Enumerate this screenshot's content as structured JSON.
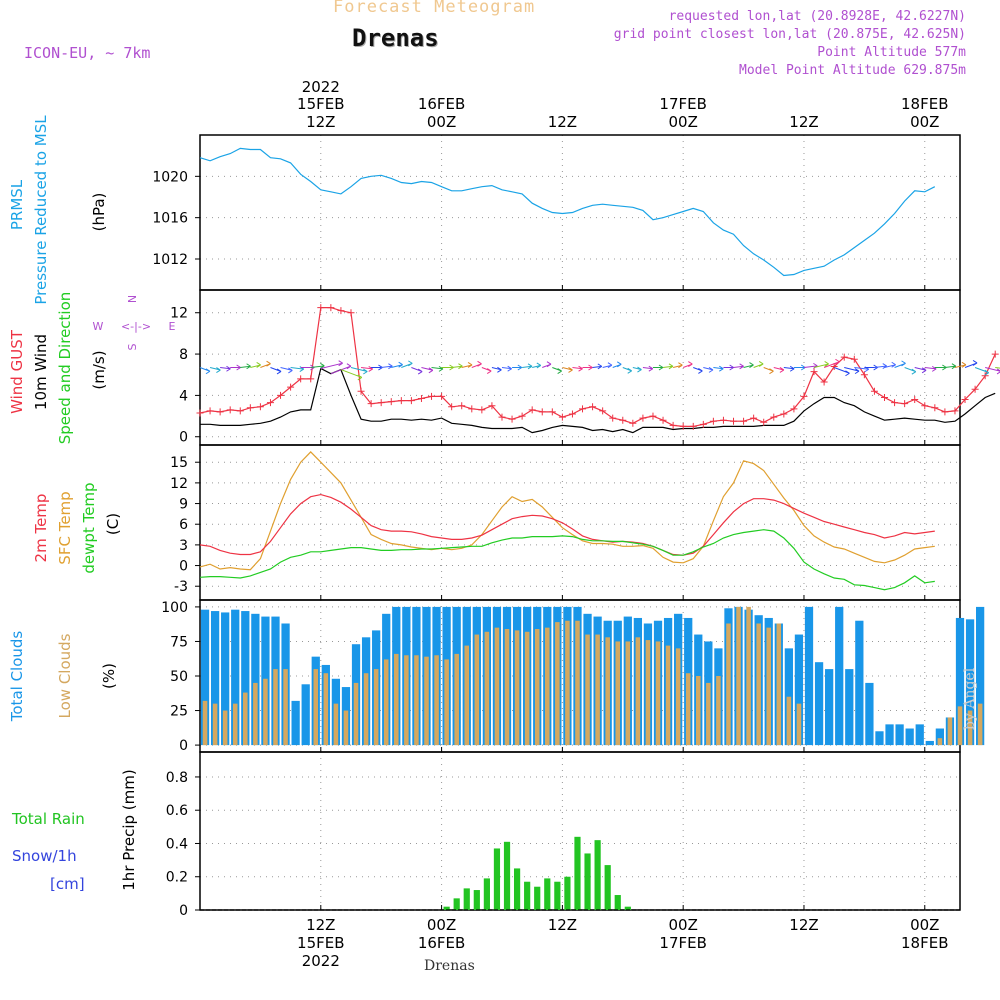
{
  "header": {
    "product": "Forecast Meteogram",
    "location": "Drenas",
    "model": "ICON-EU, ~ 7km",
    "requested": "requested lon,lat (20.8928E, 42.6227N)",
    "gridpoint": "grid point closest lon,lat (20.875E, 42.625N)",
    "point_alt": "Point Altitude 577m",
    "model_alt": "Model Point Altitude 629.875m",
    "footer_location": "Drenas",
    "credit": "by Angel"
  },
  "time_axis": {
    "top_ticks": [
      {
        "l1": "2022",
        "l2": "15FEB",
        "l3": "12Z",
        "hour": 12
      },
      {
        "l1": "",
        "l2": "16FEB",
        "l3": "00Z",
        "hour": 24
      },
      {
        "l1": "",
        "l2": "",
        "l3": "12Z",
        "hour": 36
      },
      {
        "l1": "",
        "l2": "17FEB",
        "l3": "00Z",
        "hour": 48
      },
      {
        "l1": "",
        "l2": "",
        "l3": "12Z",
        "hour": 60
      },
      {
        "l1": "",
        "l2": "18FEB",
        "l3": "00Z",
        "hour": 72
      }
    ],
    "bottom_ticks": [
      {
        "l1": "12Z",
        "l2": "15FEB",
        "l3": "2022",
        "hour": 12
      },
      {
        "l1": "00Z",
        "l2": "16FEB",
        "l3": "",
        "hour": 24
      },
      {
        "l1": "12Z",
        "l2": "",
        "l3": "",
        "hour": 36
      },
      {
        "l1": "00Z",
        "l2": "17FEB",
        "l3": "",
        "hour": 48
      },
      {
        "l1": "12Z",
        "l2": "",
        "l3": "",
        "hour": 60
      },
      {
        "l1": "00Z",
        "l2": "18FEB",
        "l3": "",
        "hour": 72
      }
    ]
  },
  "panels": {
    "pressure": {
      "label1": "PRMSL",
      "label2": "Pressure Reduced to MSL",
      "unit": "(hPa)"
    },
    "wind": {
      "label1": "Wind GUST",
      "label2": "10m Wind",
      "label3": "Speed and Direction",
      "unit": "(m/s)",
      "compass_n": "N",
      "compass_s": "S",
      "compass_w": "W",
      "compass_e": "E",
      "compass_mid": "<-|->"
    },
    "temp": {
      "label1": "2m Temp",
      "label2": "SFC Temp",
      "label3": "dewpt Temp",
      "unit": "(C)"
    },
    "cloud": {
      "label1": "Total Clouds",
      "label2": "Low Clouds",
      "unit": "(%)"
    },
    "precip": {
      "label1": "Total  Rain",
      "label2": "Snow/1h",
      "label3": "[cm]",
      "unit": "1hr Precip (mm)"
    }
  },
  "colors": {
    "pressure": "#1aa3e6",
    "gust": "#ee3344",
    "wind": "#000000",
    "t2m": "#ee3344",
    "sfc": "#e0a030",
    "dewpt": "#22cc22",
    "total_cloud": "#1996e8",
    "low_cloud": "#d4a860",
    "rain": "#22c422",
    "grid": "#999999",
    "title": "#f0c890",
    "info": "#b050d0",
    "snow": "#3344dd"
  },
  "chart_data": [
    {
      "type": "line",
      "title": "PRMSL",
      "xlabel": "",
      "ylabel": "(hPa)",
      "ylim": [
        1009,
        1024
      ],
      "yticks": [
        1012,
        1016,
        1020
      ],
      "xlim": [
        0,
        75.5
      ],
      "series": [
        {
          "name": "PRMSL",
          "x_step_hours": 1,
          "values": [
            1021.8,
            1021.5,
            1021.9,
            1022.2,
            1022.7,
            1022.6,
            1022.6,
            1021.8,
            1021.7,
            1021.3,
            1020.2,
            1019.5,
            1018.7,
            1018.5,
            1018.3,
            1019.0,
            1019.8,
            1020.0,
            1020.1,
            1019.8,
            1019.4,
            1019.3,
            1019.5,
            1019.4,
            1019.0,
            1018.6,
            1018.6,
            1018.8,
            1019.0,
            1019.1,
            1018.7,
            1018.5,
            1018.3,
            1017.4,
            1016.9,
            1016.5,
            1016.4,
            1016.5,
            1016.9,
            1017.2,
            1017.3,
            1017.2,
            1017.1,
            1017.0,
            1016.7,
            1015.8,
            1016.0,
            1016.3,
            1016.6,
            1016.9,
            1016.6,
            1015.5,
            1014.8,
            1014.4,
            1013.3,
            1012.5,
            1011.9,
            1011.2,
            1010.4,
            1010.5,
            1010.9,
            1011.1,
            1011.3,
            1011.9,
            1012.4,
            1013.1,
            1013.8,
            1014.5,
            1015.4,
            1016.4,
            1017.6,
            1018.6,
            1018.5,
            1019.0
          ]
        }
      ]
    },
    {
      "type": "line",
      "title": "Wind GUST / 10m Wind Speed and Direction",
      "xlabel": "",
      "ylabel": "(m/s)",
      "ylim": [
        -0.8,
        14.2
      ],
      "yticks": [
        0,
        4,
        8,
        12
      ],
      "xlim": [
        0,
        75.5
      ],
      "series": [
        {
          "name": "Wind GUST",
          "x_step_hours": 1,
          "values": [
            2.3,
            2.5,
            2.4,
            2.6,
            2.5,
            2.8,
            2.9,
            3.3,
            4.0,
            4.8,
            5.6,
            5.6,
            12.5,
            12.5,
            12.2,
            12.0,
            4.4,
            3.2,
            3.3,
            3.4,
            3.5,
            3.5,
            3.7,
            3.9,
            3.9,
            2.9,
            3.0,
            2.7,
            2.6,
            3.0,
            1.9,
            1.7,
            2.0,
            2.6,
            2.4,
            2.4,
            1.9,
            2.2,
            2.7,
            2.9,
            2.5,
            1.8,
            1.6,
            1.3,
            1.8,
            2.0,
            1.6,
            1.1,
            1.0,
            1.0,
            1.2,
            1.5,
            1.6,
            1.5,
            1.5,
            1.8,
            1.4,
            1.9,
            2.2,
            2.7,
            3.9,
            6.3,
            5.3,
            6.8,
            7.7,
            7.5,
            6.0,
            4.4,
            3.8,
            3.3,
            3.2,
            3.6,
            3.0,
            2.8,
            2.4,
            2.5,
            3.6,
            4.6,
            5.9,
            8.0
          ]
        },
        {
          "name": "10m Wind",
          "x_step_hours": 1,
          "values": [
            1.2,
            1.2,
            1.1,
            1.1,
            1.1,
            1.2,
            1.3,
            1.5,
            1.9,
            2.4,
            2.6,
            2.6,
            6.6,
            6.1,
            6.5,
            4.0,
            1.7,
            1.5,
            1.5,
            1.7,
            1.7,
            1.6,
            1.7,
            1.6,
            1.8,
            1.3,
            1.2,
            1.1,
            0.9,
            0.8,
            0.8,
            0.8,
            0.9,
            0.4,
            0.6,
            0.9,
            1.1,
            1.0,
            0.9,
            0.6,
            0.7,
            0.5,
            0.7,
            0.4,
            0.9,
            0.9,
            0.9,
            0.7,
            0.8,
            0.8,
            0.9,
            0.9,
            1.0,
            1.0,
            1.0,
            1.0,
            1.1,
            1.1,
            1.1,
            1.5,
            2.5,
            3.2,
            3.8,
            3.8,
            3.3,
            3.0,
            2.4,
            2.0,
            1.6,
            1.7,
            1.8,
            1.7,
            1.6,
            1.6,
            1.4,
            1.5,
            2.2,
            3.0,
            3.8,
            4.2
          ]
        }
      ]
    },
    {
      "type": "line",
      "title": "2m Temp / SFC Temp / dewpt Temp",
      "xlabel": "",
      "ylabel": "(C)",
      "ylim": [
        -5,
        17.5
      ],
      "yticks": [
        -3,
        0,
        3,
        6,
        9,
        12,
        15
      ],
      "xlim": [
        0,
        75.5
      ],
      "series": [
        {
          "name": "2m Temp",
          "x_step_hours": 1,
          "values": [
            3.0,
            2.8,
            2.2,
            1.8,
            1.6,
            1.6,
            2.0,
            3.5,
            5.5,
            7.5,
            9.0,
            10.0,
            10.3,
            9.9,
            9.2,
            8.2,
            7.0,
            5.8,
            5.2,
            5.0,
            5.0,
            4.9,
            4.6,
            4.2,
            4.0,
            3.8,
            3.8,
            4.0,
            4.4,
            5.2,
            6.0,
            6.8,
            7.1,
            7.3,
            7.2,
            6.8,
            6.2,
            5.3,
            4.3,
            3.8,
            3.6,
            3.4,
            3.5,
            3.4,
            3.2,
            2.8,
            2.2,
            1.6,
            1.5,
            1.8,
            2.8,
            4.5,
            6.2,
            7.8,
            9.0,
            9.7,
            9.7,
            9.5,
            9.0,
            8.3,
            7.6,
            7.0,
            6.4,
            6.0,
            5.6,
            5.2,
            4.8,
            4.5,
            4.0,
            4.3,
            4.8,
            4.6,
            4.8,
            5.0
          ]
        },
        {
          "name": "SFC Temp",
          "x_step_hours": 1,
          "values": [
            -0.2,
            0.2,
            -0.5,
            -0.3,
            -0.5,
            -0.6,
            1.0,
            5.0,
            9.0,
            12.5,
            15.0,
            16.5,
            15.0,
            13.5,
            12.0,
            9.5,
            7.0,
            4.5,
            3.8,
            3.2,
            3.0,
            2.7,
            2.5,
            2.3,
            2.5,
            2.3,
            2.5,
            3.0,
            4.5,
            6.5,
            8.5,
            10.0,
            9.3,
            9.6,
            8.5,
            7.0,
            5.5,
            4.5,
            3.6,
            3.2,
            3.2,
            3.1,
            2.8,
            2.8,
            2.9,
            2.5,
            1.2,
            0.5,
            0.4,
            1.0,
            2.8,
            6.5,
            10.0,
            12.0,
            15.2,
            14.8,
            13.8,
            11.8,
            9.8,
            8.0,
            5.8,
            4.3,
            3.4,
            2.7,
            2.4,
            1.8,
            1.2,
            0.6,
            0.4,
            0.8,
            1.5,
            2.4,
            2.6,
            2.8
          ]
        },
        {
          "name": "dewpt Temp",
          "x_step_hours": 1,
          "values": [
            -1.7,
            -1.6,
            -1.6,
            -1.7,
            -1.8,
            -1.5,
            -1.0,
            -0.5,
            0.5,
            1.2,
            1.5,
            2.0,
            2.0,
            2.2,
            2.4,
            2.6,
            2.6,
            2.4,
            2.2,
            2.2,
            2.3,
            2.3,
            2.4,
            2.4,
            2.5,
            2.6,
            2.7,
            2.8,
            2.8,
            3.3,
            3.7,
            4.0,
            4.0,
            4.2,
            4.2,
            4.2,
            4.3,
            4.2,
            3.8,
            3.6,
            3.6,
            3.5,
            3.5,
            3.3,
            3.1,
            2.8,
            2.2,
            1.5,
            1.5,
            2.0,
            2.7,
            3.2,
            4.0,
            4.5,
            4.8,
            5.0,
            5.2,
            5.0,
            4.0,
            2.5,
            0.5,
            -0.5,
            -1.2,
            -1.8,
            -2.0,
            -2.8,
            -2.9,
            -3.2,
            -3.5,
            -3.2,
            -2.5,
            -1.5,
            -2.5,
            -2.3
          ]
        }
      ]
    },
    {
      "type": "bar",
      "title": "Total Clouds / Low Clouds",
      "xlabel": "",
      "ylabel": "(%)",
      "ylim": [
        -5,
        105
      ],
      "yticks": [
        0,
        25,
        50,
        75,
        100
      ],
      "xlim": [
        0,
        75.5
      ],
      "series": [
        {
          "name": "Total Clouds",
          "x_step_hours": 1,
          "values": [
            98,
            97,
            96,
            98,
            97,
            95,
            93,
            93,
            88,
            32,
            44,
            64,
            58,
            48,
            42,
            73,
            78,
            83,
            95,
            100,
            100,
            100,
            100,
            100,
            100,
            100,
            100,
            100,
            100,
            100,
            100,
            100,
            100,
            100,
            100,
            100,
            100,
            100,
            95,
            93,
            90,
            90,
            93,
            92,
            88,
            90,
            92,
            95,
            92,
            80,
            75,
            70,
            99,
            100,
            98,
            94,
            92,
            88,
            70,
            80,
            100,
            60,
            55,
            100,
            55,
            90,
            45,
            10,
            15,
            15,
            12,
            15,
            3,
            12,
            20,
            92,
            91,
            100
          ]
        },
        {
          "name": "Low Clouds",
          "x_step_hours": 1,
          "values": [
            32,
            30,
            25,
            30,
            38,
            45,
            48,
            55,
            55,
            0,
            0,
            55,
            52,
            30,
            25,
            45,
            52,
            55,
            62,
            66,
            65,
            65,
            64,
            65,
            62,
            66,
            72,
            80,
            82,
            85,
            84,
            83,
            82,
            84,
            85,
            89,
            90,
            90,
            80,
            80,
            78,
            75,
            75,
            78,
            76,
            75,
            72,
            70,
            52,
            50,
            45,
            50,
            88,
            100,
            100,
            88,
            85,
            88,
            35,
            30,
            0,
            0,
            0,
            0,
            0,
            0,
            0,
            0,
            0,
            0,
            0,
            0,
            0,
            5,
            20,
            28,
            25,
            30
          ]
        }
      ]
    },
    {
      "type": "bar",
      "title": "1hr Precip",
      "xlabel": "",
      "ylabel": "1hr Precip (mm)",
      "ylim": [
        0,
        0.95
      ],
      "yticks": [
        0,
        0.2,
        0.4,
        0.6,
        0.8
      ],
      "xlim": [
        0,
        75.5
      ],
      "series": [
        {
          "name": "Total Rain",
          "x_start_hour": 24,
          "x_step_hours": 1,
          "values": [
            0.02,
            0.07,
            0.13,
            0.12,
            0.19,
            0.37,
            0.41,
            0.25,
            0.17,
            0.14,
            0.19,
            0.17,
            0.2,
            0.44,
            0.34,
            0.42,
            0.27,
            0.09,
            0.02
          ]
        }
      ]
    }
  ]
}
